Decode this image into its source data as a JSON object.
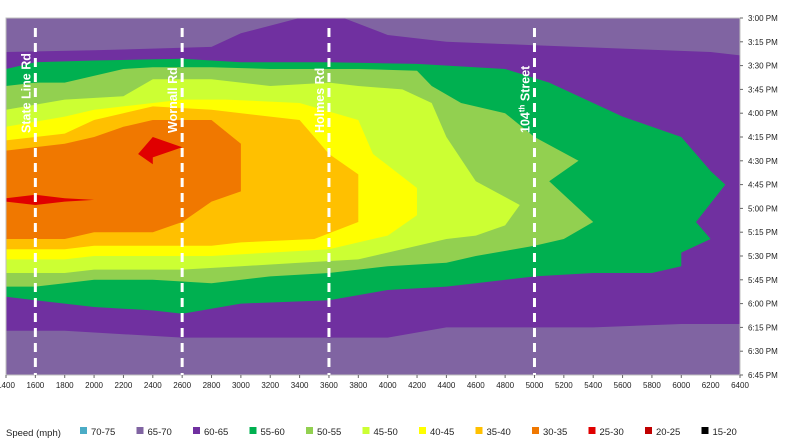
{
  "chart_data": {
    "type": "heatmap",
    "title": "",
    "xlabel": "",
    "ylabel": "",
    "x_range": [
      1400,
      6400
    ],
    "x_ticks": [
      1400,
      1600,
      1800,
      2000,
      2200,
      2400,
      2600,
      2800,
      3000,
      3200,
      3400,
      3600,
      3800,
      4000,
      4200,
      4400,
      4600,
      4800,
      5000,
      5200,
      5400,
      5600,
      5800,
      6000,
      6200,
      6400
    ],
    "y_ticks": [
      "3:00 PM",
      "3:15 PM",
      "3:30 PM",
      "3:45 PM",
      "4:00 PM",
      "4:15 PM",
      "4:30 PM",
      "4:45 PM",
      "5:00 PM",
      "5:15 PM",
      "5:30 PM",
      "5:45 PM",
      "6:00 PM",
      "6:15 PM",
      "6:30 PM",
      "6:45 PM"
    ],
    "y_range_minutes": [
      0,
      105
    ],
    "roads": [
      {
        "name": "State Line Rd",
        "x": 1600
      },
      {
        "name": "Wornall Rd",
        "x": 2600
      },
      {
        "name": "Holmes Rd",
        "x": 3600
      },
      {
        "name": "104th Street",
        "x": 5000,
        "base": "104",
        "sup": "th",
        "rest": " Street"
      }
    ],
    "legend_title": "Speed (mph)",
    "legend": [
      {
        "label": "70-75",
        "color": "#4bacc6"
      },
      {
        "label": "65-70",
        "color": "#8064a2"
      },
      {
        "label": "60-65",
        "color": "#7030a0"
      },
      {
        "label": "55-60",
        "color": "#00b050"
      },
      {
        "label": "50-55",
        "color": "#92d050"
      },
      {
        "label": "45-50",
        "color": "#ccff33"
      },
      {
        "label": "40-45",
        "color": "#ffff00"
      },
      {
        "label": "35-40",
        "color": "#ffc000"
      },
      {
        "label": "30-35",
        "color": "#f07800"
      },
      {
        "label": "25-30",
        "color": "#e00000"
      },
      {
        "label": "20-25",
        "color": "#c00000"
      },
      {
        "label": "15-20",
        "color": "#000000"
      }
    ],
    "background_band": "65-70",
    "contours": [
      {
        "band": "60-65",
        "points": [
          [
            1400,
            10
          ],
          [
            2000,
            9.5
          ],
          [
            2800,
            8.5
          ],
          [
            3000,
            4.5
          ],
          [
            3400,
            0
          ],
          [
            3700,
            0
          ],
          [
            4000,
            5
          ],
          [
            4400,
            7
          ],
          [
            5000,
            8
          ],
          [
            5600,
            9
          ],
          [
            6200,
            10
          ],
          [
            6400,
            11
          ],
          [
            6400,
            90
          ],
          [
            6000,
            90
          ],
          [
            5400,
            91
          ],
          [
            5000,
            91
          ],
          [
            4400,
            91
          ],
          [
            4000,
            94
          ],
          [
            3800,
            94
          ],
          [
            3400,
            94
          ],
          [
            3000,
            94
          ],
          [
            2600,
            94
          ],
          [
            2200,
            93
          ],
          [
            1800,
            92
          ],
          [
            1400,
            92
          ]
        ]
      },
      {
        "band": "55-60",
        "points": [
          [
            1400,
            15
          ],
          [
            1600,
            13
          ],
          [
            2000,
            12.5
          ],
          [
            2600,
            12
          ],
          [
            3000,
            13
          ],
          [
            3600,
            13
          ],
          [
            4200,
            13.5
          ],
          [
            4800,
            15
          ],
          [
            5100,
            19
          ],
          [
            5600,
            29
          ],
          [
            6000,
            35
          ],
          [
            6200,
            45
          ],
          [
            6300,
            49
          ],
          [
            6100,
            60
          ],
          [
            6200,
            65
          ],
          [
            6000,
            69
          ],
          [
            6000,
            73
          ],
          [
            5800,
            75
          ],
          [
            5400,
            75
          ],
          [
            5000,
            76
          ],
          [
            4600,
            78
          ],
          [
            4400,
            79
          ],
          [
            4000,
            80
          ],
          [
            3600,
            83
          ],
          [
            3000,
            84
          ],
          [
            2600,
            87
          ],
          [
            2400,
            86
          ],
          [
            2000,
            85
          ],
          [
            1800,
            84
          ],
          [
            1600,
            83
          ],
          [
            1400,
            82
          ]
        ]
      },
      {
        "band": "50-55",
        "points": [
          [
            1400,
            20
          ],
          [
            1600,
            19
          ],
          [
            1800,
            19
          ],
          [
            2200,
            15
          ],
          [
            2400,
            14.5
          ],
          [
            2800,
            14.5
          ],
          [
            3200,
            15
          ],
          [
            3800,
            15
          ],
          [
            4200,
            15.5
          ],
          [
            4300,
            20
          ],
          [
            4500,
            25
          ],
          [
            4800,
            28
          ],
          [
            5000,
            35
          ],
          [
            5300,
            42
          ],
          [
            5100,
            48
          ],
          [
            5400,
            60
          ],
          [
            5200,
            65
          ],
          [
            5000,
            67
          ],
          [
            4600,
            70
          ],
          [
            4400,
            72
          ],
          [
            4000,
            73
          ],
          [
            3600,
            75
          ],
          [
            3200,
            76
          ],
          [
            2800,
            78
          ],
          [
            2400,
            77
          ],
          [
            2000,
            77
          ],
          [
            1800,
            78
          ],
          [
            1600,
            79
          ],
          [
            1400,
            79
          ]
        ]
      },
      {
        "band": "45-50",
        "points": [
          [
            1400,
            27
          ],
          [
            1800,
            24
          ],
          [
            2200,
            23
          ],
          [
            2400,
            18
          ],
          [
            2800,
            18
          ],
          [
            3200,
            20
          ],
          [
            3600,
            19
          ],
          [
            3800,
            20
          ],
          [
            4100,
            21
          ],
          [
            4300,
            25
          ],
          [
            4400,
            35
          ],
          [
            4600,
            48
          ],
          [
            4900,
            55
          ],
          [
            4800,
            61
          ],
          [
            4600,
            64
          ],
          [
            4400,
            65
          ],
          [
            4000,
            69
          ],
          [
            3800,
            71
          ],
          [
            3400,
            72
          ],
          [
            3000,
            73
          ],
          [
            2600,
            74
          ],
          [
            2400,
            74
          ],
          [
            2000,
            74
          ],
          [
            1800,
            75
          ],
          [
            1400,
            75
          ]
        ]
      },
      {
        "band": "40-45",
        "points": [
          [
            1400,
            32
          ],
          [
            1800,
            29
          ],
          [
            2000,
            27
          ],
          [
            2200,
            26
          ],
          [
            2600,
            24
          ],
          [
            2900,
            24
          ],
          [
            3400,
            25
          ],
          [
            3800,
            30
          ],
          [
            3900,
            40
          ],
          [
            4200,
            50
          ],
          [
            4200,
            58
          ],
          [
            4000,
            64
          ],
          [
            3600,
            68
          ],
          [
            3200,
            69
          ],
          [
            2800,
            70
          ],
          [
            2600,
            70
          ],
          [
            2200,
            70
          ],
          [
            2000,
            70
          ],
          [
            1800,
            71
          ],
          [
            1400,
            71
          ]
        ]
      },
      {
        "band": "35-40",
        "points": [
          [
            1400,
            36
          ],
          [
            1800,
            34
          ],
          [
            2000,
            30
          ],
          [
            2200,
            28
          ],
          [
            2400,
            26
          ],
          [
            2800,
            27
          ],
          [
            3400,
            30
          ],
          [
            3600,
            40
          ],
          [
            3800,
            46
          ],
          [
            3800,
            60
          ],
          [
            3500,
            65
          ],
          [
            3000,
            66
          ],
          [
            2800,
            67
          ],
          [
            2400,
            67
          ],
          [
            2000,
            67
          ],
          [
            1800,
            68
          ],
          [
            1400,
            68
          ]
        ]
      },
      {
        "band": "30-35",
        "points": [
          [
            1400,
            39
          ],
          [
            1800,
            37
          ],
          [
            2000,
            35
          ],
          [
            2200,
            32
          ],
          [
            2400,
            30
          ],
          [
            2800,
            30
          ],
          [
            3000,
            37
          ],
          [
            3000,
            44
          ],
          [
            3000,
            51
          ],
          [
            2800,
            54
          ],
          [
            2600,
            60
          ],
          [
            2400,
            63
          ],
          [
            2000,
            63
          ],
          [
            1800,
            65
          ],
          [
            1400,
            65
          ]
        ]
      },
      {
        "band": "25-30",
        "points": [
          [
            2300,
            40
          ],
          [
            2400,
            35
          ],
          [
            2600,
            38
          ],
          [
            2400,
            41
          ],
          [
            2400,
            43
          ]
        ]
      },
      {
        "band": "25-30",
        "points": [
          [
            1400,
            53
          ],
          [
            1600,
            52
          ],
          [
            1800,
            53
          ],
          [
            2000,
            53.5
          ],
          [
            1800,
            54
          ],
          [
            1600,
            55
          ],
          [
            1400,
            54
          ]
        ]
      }
    ]
  }
}
